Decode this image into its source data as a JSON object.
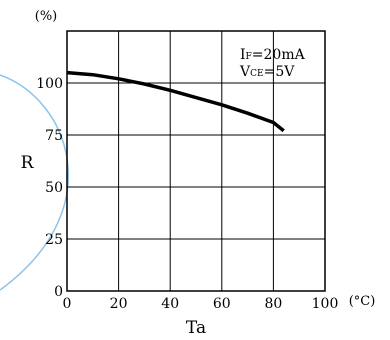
{
  "chart_data": {
    "type": "line",
    "title": "",
    "xlabel": "Ta",
    "ylabel": "R",
    "x_unit": "(°C)",
    "y_unit": "(%)",
    "xlim": [
      0,
      100
    ],
    "ylim": [
      0,
      125
    ],
    "x_ticks": [
      0,
      20,
      40,
      60,
      80,
      100
    ],
    "y_ticks": [
      0,
      25,
      50,
      75,
      100
    ],
    "grid": true,
    "annotation": {
      "line1_main": "I",
      "line1_sub": "F",
      "line1_rest": "=20mA",
      "line2_main": "V",
      "line2_sub": "CE",
      "line2_rest": "=5V"
    },
    "series": [
      {
        "x": [
          0,
          10,
          20,
          30,
          40,
          50,
          60,
          70,
          80,
          84
        ],
        "y": [
          105,
          104,
          102,
          99.5,
          96.5,
          93,
          89.5,
          85.5,
          81,
          77
        ],
        "color": "#000000"
      }
    ],
    "decoration_color": "#8ec3ea"
  }
}
